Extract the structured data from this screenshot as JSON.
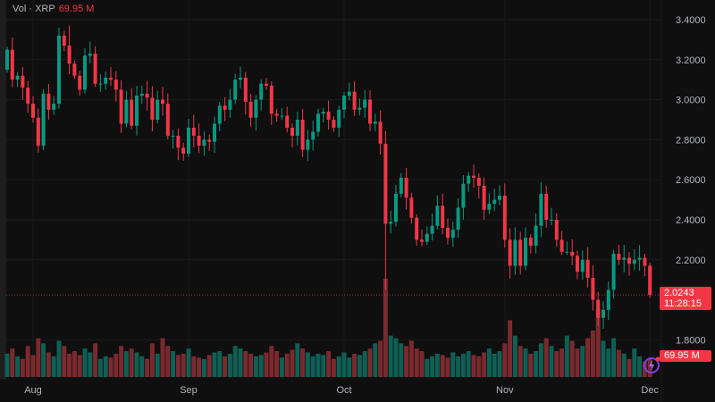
{
  "legend": {
    "label": "Vol · XRP",
    "value": "69.95 M"
  },
  "last_price": {
    "price": "2.0243",
    "countdown": "11:28:15"
  },
  "last_volume": "69.95 M",
  "colors": {
    "up": "#089981",
    "down": "#f23645",
    "up_vol": "#0f5f55",
    "down_vol": "#7a2a2e",
    "background": "#0f0f0f",
    "axis_text": "#b2b5be"
  },
  "chart_data": {
    "type": "candlestick",
    "title": "",
    "y_ticks": [
      "3.4000",
      "3.2000",
      "3.0000",
      "2.8000",
      "2.6000",
      "2.4000",
      "2.2000",
      "1.8000"
    ],
    "ylim": [
      1.7,
      3.45
    ],
    "x_ticks": [
      {
        "label": "Aug",
        "index": 5
      },
      {
        "label": "Sep",
        "index": 35
      },
      {
        "label": "Oct",
        "index": 65
      },
      {
        "label": "Nov",
        "index": 96
      },
      {
        "label": "Dec",
        "index": 124
      }
    ],
    "grid": true,
    "closes": [
      3.25,
      3.1,
      3.12,
      3.06,
      2.98,
      2.91,
      2.77,
      3.03,
      2.95,
      2.98,
      3.32,
      3.27,
      3.18,
      3.12,
      3.05,
      3.22,
      3.23,
      3.08,
      3.08,
      3.11,
      3.1,
      3.05,
      2.88,
      3.0,
      2.87,
      3.02,
      3.03,
      3.01,
      2.9,
      3.0,
      2.98,
      2.82,
      2.82,
      2.76,
      2.73,
      2.86,
      2.82,
      2.77,
      2.8,
      2.79,
      2.88,
      2.97,
      2.95,
      3.0,
      3.1,
      3.11,
      2.99,
      2.91,
      3.0,
      3.08,
      3.07,
      2.93,
      2.92,
      2.92,
      2.86,
      2.82,
      2.9,
      2.75,
      2.8,
      2.84,
      2.93,
      2.94,
      2.9,
      2.86,
      2.95,
      3.02,
      3.04,
      2.95,
      2.96,
      3.0,
      2.88,
      2.89,
      2.78,
      2.38,
      2.39,
      2.53,
      2.61,
      2.51,
      2.41,
      2.3,
      2.29,
      2.33,
      2.37,
      2.47,
      2.36,
      2.31,
      2.35,
      2.46,
      2.58,
      2.62,
      2.61,
      2.57,
      2.45,
      2.48,
      2.5,
      2.52,
      2.3,
      2.17,
      2.3,
      2.17,
      2.31,
      2.27,
      2.37,
      2.53,
      2.4,
      2.4,
      2.3,
      2.24,
      2.24,
      2.22,
      2.14,
      2.2,
      2.11,
      2.0,
      1.91,
      1.95,
      2.05,
      2.23,
      2.2,
      2.21,
      2.18,
      2.2,
      2.21,
      2.17,
      2.0243
    ],
    "first_open": 3.15,
    "wick_extra": {
      "73": {
        "low": 2.05
      },
      "10": {
        "high": 3.36
      },
      "12": {
        "high": 3.37
      }
    },
    "volumes_m": [
      90,
      110,
      80,
      70,
      120,
      85,
      150,
      130,
      95,
      80,
      140,
      120,
      90,
      100,
      85,
      110,
      95,
      130,
      70,
      80,
      75,
      90,
      120,
      100,
      110,
      95,
      80,
      70,
      130,
      90,
      150,
      120,
      100,
      85,
      90,
      110,
      80,
      75,
      70,
      85,
      95,
      100,
      80,
      90,
      120,
      110,
      100,
      90,
      80,
      85,
      95,
      120,
      100,
      75,
      90,
      105,
      130,
      110,
      95,
      80,
      90,
      85,
      100,
      70,
      80,
      95,
      75,
      90,
      85,
      100,
      110,
      130,
      140,
      380,
      160,
      150,
      130,
      120,
      140,
      110,
      100,
      70,
      80,
      90,
      85,
      75,
      95,
      80,
      90,
      100,
      85,
      80,
      95,
      110,
      90,
      100,
      130,
      220,
      160,
      120,
      110,
      90,
      100,
      130,
      150,
      120,
      100,
      110,
      160,
      140,
      110,
      120,
      150,
      180,
      265,
      140,
      110,
      150,
      105,
      90,
      70,
      110,
      80,
      60,
      70
    ]
  }
}
